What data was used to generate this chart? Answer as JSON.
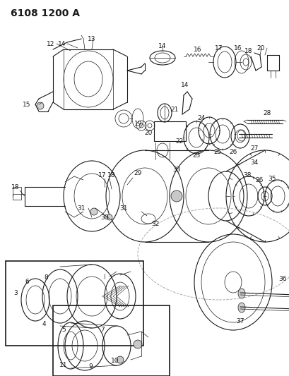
{
  "title": "6108 1200 A",
  "bg_color": "#ffffff",
  "line_color": "#1a1a1a",
  "title_fontsize": 9,
  "label_fontsize": 6.5,
  "fig_width": 4.1,
  "fig_height": 5.33,
  "dpi": 100
}
